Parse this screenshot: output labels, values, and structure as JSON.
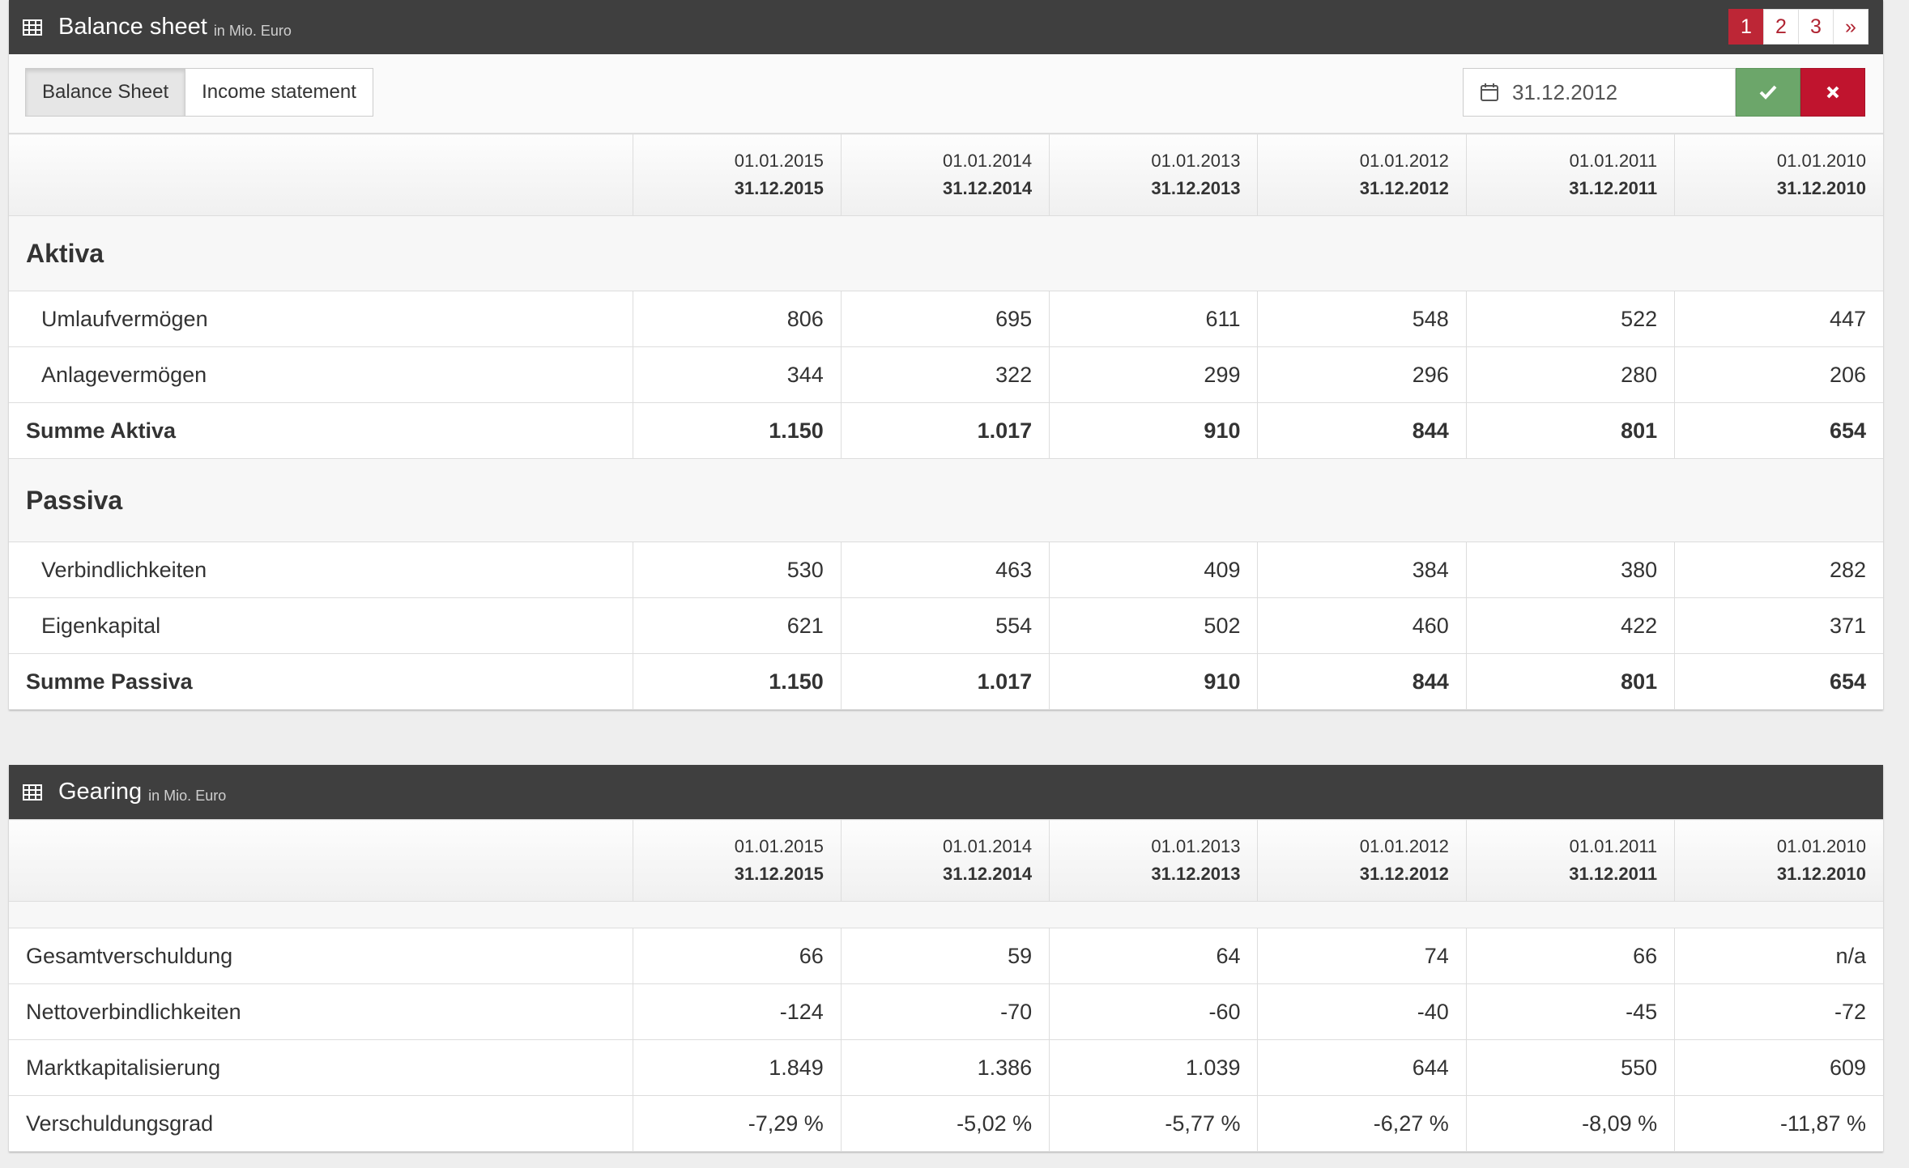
{
  "balance_panel": {
    "title": "Balance sheet",
    "subtitle": "in Mio. Euro",
    "pager": [
      "1",
      "2",
      "3",
      "»"
    ],
    "tabs": [
      "Balance Sheet",
      "Income statement"
    ],
    "date_value": "31.12.2012",
    "periods": [
      {
        "from": "01.01.2015",
        "to": "31.12.2015"
      },
      {
        "from": "01.01.2014",
        "to": "31.12.2014"
      },
      {
        "from": "01.01.2013",
        "to": "31.12.2013"
      },
      {
        "from": "01.01.2012",
        "to": "31.12.2012"
      },
      {
        "from": "01.01.2011",
        "to": "31.12.2011"
      },
      {
        "from": "01.01.2010",
        "to": "31.12.2010"
      }
    ],
    "aktiva_label": "Aktiva",
    "aktiva_rows": [
      {
        "label": "Umlaufvermögen",
        "values": [
          "806",
          "695",
          "611",
          "548",
          "522",
          "447"
        ]
      },
      {
        "label": "Anlagevermögen",
        "values": [
          "344",
          "322",
          "299",
          "296",
          "280",
          "206"
        ]
      }
    ],
    "aktiva_sum": {
      "label": "Summe Aktiva",
      "values": [
        "1.150",
        "1.017",
        "910",
        "844",
        "801",
        "654"
      ]
    },
    "passiva_label": "Passiva",
    "passiva_rows": [
      {
        "label": "Verbindlichkeiten",
        "values": [
          "530",
          "463",
          "409",
          "384",
          "380",
          "282"
        ]
      },
      {
        "label": "Eigenkapital",
        "values": [
          "621",
          "554",
          "502",
          "460",
          "422",
          "371"
        ]
      }
    ],
    "passiva_sum": {
      "label": "Summe Passiva",
      "values": [
        "1.150",
        "1.017",
        "910",
        "844",
        "801",
        "654"
      ]
    }
  },
  "gearing_panel": {
    "title": "Gearing",
    "subtitle": "in Mio. Euro",
    "periods": [
      {
        "from": "01.01.2015",
        "to": "31.12.2015"
      },
      {
        "from": "01.01.2014",
        "to": "31.12.2014"
      },
      {
        "from": "01.01.2013",
        "to": "31.12.2013"
      },
      {
        "from": "01.01.2012",
        "to": "31.12.2012"
      },
      {
        "from": "01.01.2011",
        "to": "31.12.2011"
      },
      {
        "from": "01.01.2010",
        "to": "31.12.2010"
      }
    ],
    "rows": [
      {
        "label": "Gesamtverschuldung",
        "values": [
          "66",
          "59",
          "64",
          "74",
          "66",
          "n/a"
        ]
      },
      {
        "label": "Nettoverbindlichkeiten",
        "values": [
          "-124",
          "-70",
          "-60",
          "-40",
          "-45",
          "-72"
        ]
      },
      {
        "label": "Marktkapitalisierung",
        "values": [
          "1.849",
          "1.386",
          "1.039",
          "644",
          "550",
          "609"
        ]
      },
      {
        "label": "Verschuldungsgrad",
        "values": [
          "-7,29 %",
          "-5,02 %",
          "-5,77 %",
          "-6,27 %",
          "-8,09 %",
          "-11,87 %"
        ]
      }
    ]
  },
  "colors": {
    "header_bg": "#3f3f3f",
    "accent_red": "#bd2636",
    "ok_green": "#6ca66a",
    "cancel_red": "#c0142e"
  },
  "icons": {
    "table": "table-icon",
    "calendar": "calendar-icon",
    "confirm": "check-icon",
    "cancel": "close-icon"
  }
}
